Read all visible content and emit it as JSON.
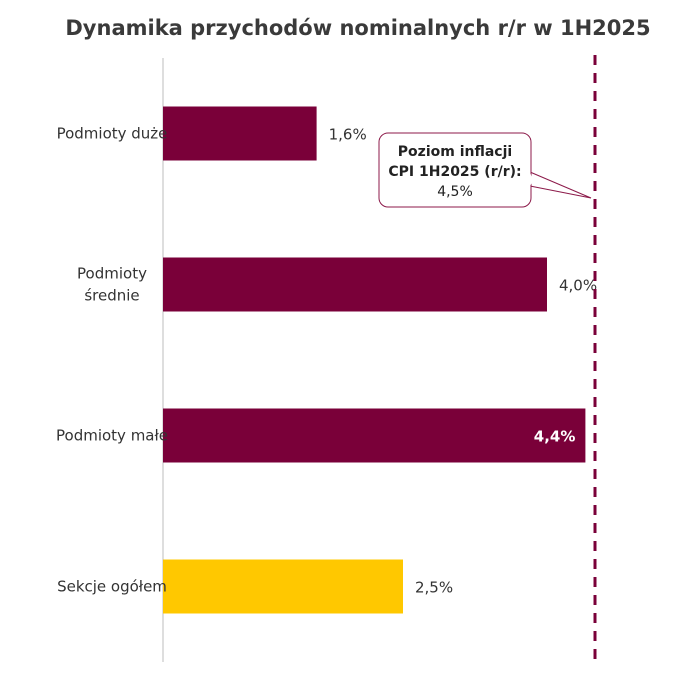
{
  "chart_data": {
    "type": "bar",
    "orientation": "horizontal",
    "title": "Dynamika przychodów nominalnych r/r w 1H2025",
    "categories": [
      [
        "Podmioty duże"
      ],
      [
        "Podmioty",
        "średnie"
      ],
      [
        "Podmioty małe"
      ],
      [
        "Sekcje ogółem"
      ]
    ],
    "values": [
      1.6,
      4.0,
      4.4,
      2.5
    ],
    "value_labels": [
      "1,6%",
      "4,0%",
      "4,4%",
      "2,5%"
    ],
    "bar_colors": [
      "#7a0039",
      "#7a0039",
      "#7a0039",
      "#ffc800"
    ],
    "xlim": [
      0,
      4.5
    ],
    "grid": false,
    "reference_line": {
      "value": 4.5,
      "color": "#7a0039",
      "style": "dashed",
      "label_lines": [
        "Poziom inflacji",
        "CPI 1H2025 (r/r):",
        "4,5%"
      ]
    }
  }
}
